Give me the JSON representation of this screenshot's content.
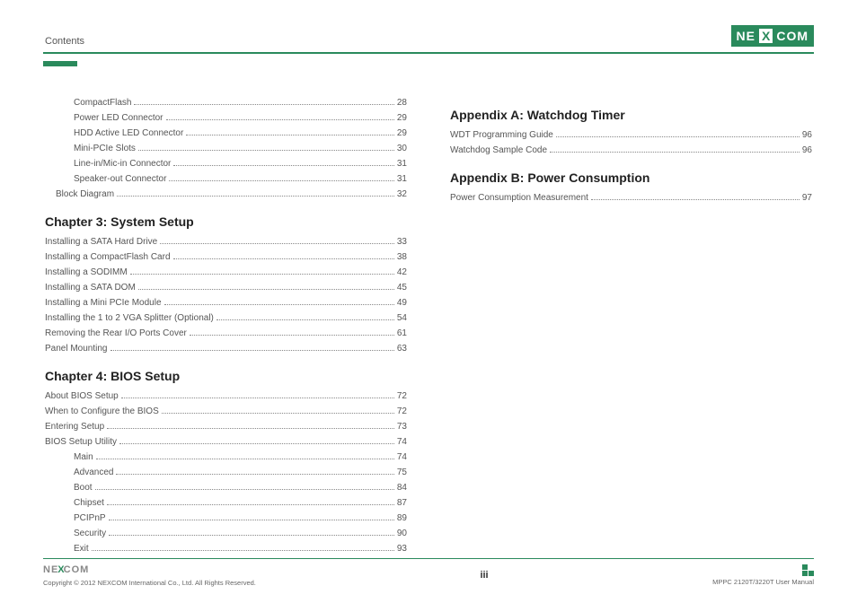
{
  "header": {
    "title": "Contents",
    "logo_left": "NE",
    "logo_x": "X",
    "logo_right": "COM"
  },
  "colors": {
    "accent": "#2a8a5c",
    "text": "#333333",
    "muted": "#555555"
  },
  "left_col": {
    "pre_items": [
      {
        "label": "CompactFlash",
        "page": "28",
        "indent": 1
      },
      {
        "label": "Power LED Connector",
        "page": "29",
        "indent": 1
      },
      {
        "label": "HDD Active LED Connector",
        "page": "29",
        "indent": 1
      },
      {
        "label": "Mini-PCIe Slots",
        "page": "30",
        "indent": 1
      },
      {
        "label": "Line-in/Mic-in Connector",
        "page": "31",
        "indent": 1
      },
      {
        "label": "Speaker-out Connector",
        "page": "31",
        "indent": 1
      },
      {
        "label": "Block Diagram",
        "page": "32",
        "indent": 2
      }
    ],
    "chapter3": {
      "title": "Chapter 3: System Setup",
      "items": [
        {
          "label": "Installing a SATA Hard Drive",
          "page": "33"
        },
        {
          "label": "Installing a CompactFlash Card",
          "page": "38"
        },
        {
          "label": "Installing a SODIMM",
          "page": "42"
        },
        {
          "label": "Installing a SATA DOM",
          "page": "45"
        },
        {
          "label": "Installing a Mini PCIe Module",
          "page": "49"
        },
        {
          "label": "Installing the 1 to 2 VGA Splitter (Optional)",
          "page": "54"
        },
        {
          "label": "Removing the Rear I/O Ports Cover",
          "page": "61"
        },
        {
          "label": "Panel Mounting",
          "page": "63"
        }
      ]
    },
    "chapter4": {
      "title": "Chapter 4: BIOS Setup",
      "items": [
        {
          "label": "About BIOS Setup",
          "page": "72"
        },
        {
          "label": "When to Configure the BIOS",
          "page": "72"
        },
        {
          "label": "Entering Setup",
          "page": "73"
        },
        {
          "label": "BIOS Setup Utility",
          "page": "74"
        },
        {
          "label": "Main",
          "page": "74",
          "indent": 1
        },
        {
          "label": "Advanced",
          "page": "75",
          "indent": 1
        },
        {
          "label": "Boot",
          "page": "84",
          "indent": 1
        },
        {
          "label": "Chipset",
          "page": "87",
          "indent": 1
        },
        {
          "label": "PCIPnP",
          "page": "89",
          "indent": 1
        },
        {
          "label": "Security",
          "page": "90",
          "indent": 1
        },
        {
          "label": "Exit",
          "page": "93",
          "indent": 1
        }
      ]
    }
  },
  "right_col": {
    "appendixA": {
      "title": "Appendix A: Watchdog Timer",
      "items": [
        {
          "label": "WDT Programming Guide",
          "page": "96"
        },
        {
          "label": "Watchdog Sample Code",
          "page": "96"
        }
      ]
    },
    "appendixB": {
      "title": "Appendix B: Power Consumption",
      "items": [
        {
          "label": "Power Consumption Measurement",
          "page": "97"
        }
      ]
    }
  },
  "footer": {
    "logo_left": "NE",
    "logo_x": "X",
    "logo_right": "COM",
    "copyright": "Copyright © 2012 NEXCOM International Co., Ltd. All Rights Reserved.",
    "page_num": "iii",
    "manual": "MPPC 2120T/3220T User Manual"
  }
}
